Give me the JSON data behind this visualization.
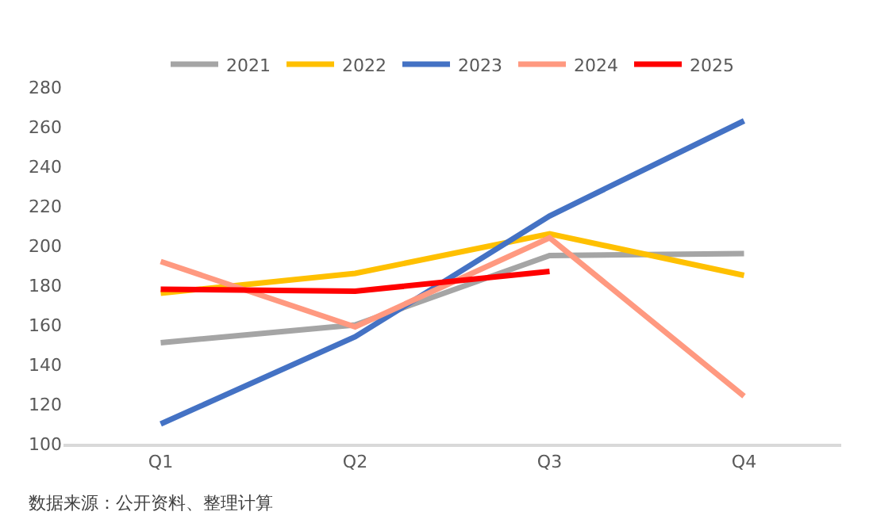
{
  "chart_data": {
    "type": "line",
    "categories": [
      "Q1",
      "Q2",
      "Q3",
      "Q4"
    ],
    "series": [
      {
        "name": "2021",
        "color": "#a5a5a5",
        "values": [
          151,
          160,
          195,
          196
        ]
      },
      {
        "name": "2022",
        "color": "#ffc000",
        "values": [
          176,
          186,
          206,
          185
        ]
      },
      {
        "name": "2023",
        "color": "#4472c4",
        "values": [
          110,
          154,
          215,
          263
        ]
      },
      {
        "name": "2024",
        "color": "#ff9980",
        "values": [
          192,
          159,
          204,
          124
        ]
      },
      {
        "name": "2025",
        "color": "#ff0000",
        "values": [
          178,
          177,
          187,
          null
        ]
      }
    ],
    "ylim": [
      100,
      280
    ],
    "yticks": [
      100,
      120,
      140,
      160,
      180,
      200,
      220,
      240,
      260,
      280
    ],
    "grid": false,
    "legend": "top",
    "marker": "none",
    "line_style": "solid",
    "annotations": [
      "数据来源：公开资料、整理计算"
    ]
  }
}
